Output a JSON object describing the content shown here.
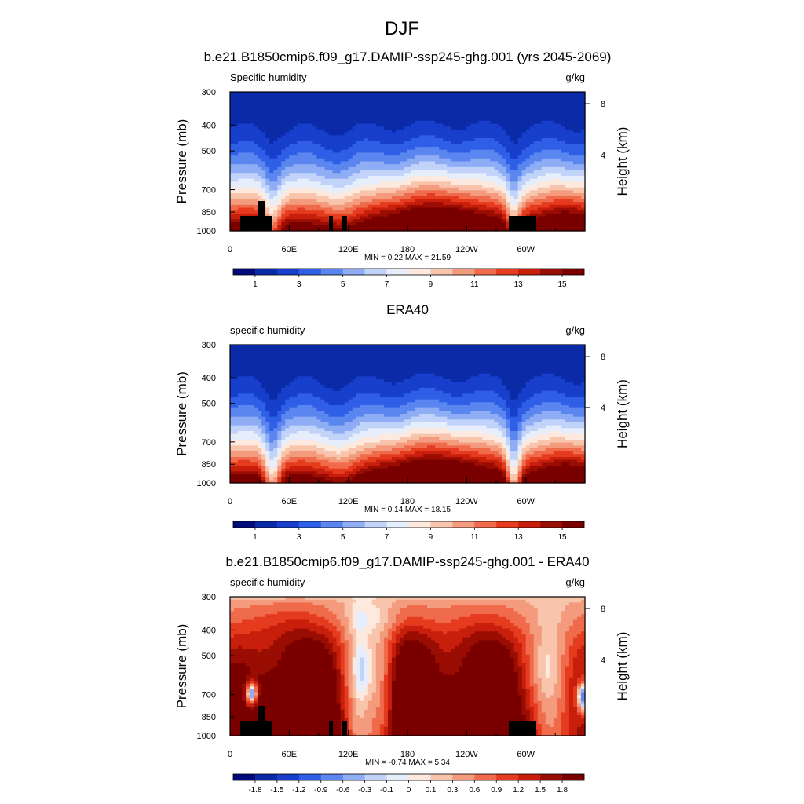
{
  "figure_title": "DJF",
  "chart_data": [
    {
      "type": "heatmap",
      "title": "b.e21.B1850cmip6.f09_g17.DAMIP-ssp245-ghg.001 (yrs 2045-2069)",
      "left_label": "Specific humidity",
      "right_label": "g/kg",
      "ylabel": "Pressure (mb)",
      "right_axis_label": "Height (km)",
      "yticks": [
        300,
        400,
        500,
        700,
        850,
        1000
      ],
      "right_ticks": [
        "8",
        "4"
      ],
      "xticks": [
        "0",
        "60E",
        "120E",
        "180",
        "120W",
        "60W"
      ],
      "stats": "MIN =   0.22  MAX =  21.59",
      "colorbar_labels": [
        "1",
        "3",
        "5",
        "7",
        "9",
        "11",
        "13",
        "15"
      ],
      "levels": [
        0,
        1,
        2,
        3,
        4,
        5,
        6,
        7,
        8,
        9,
        10,
        11,
        12,
        13,
        14,
        15
      ],
      "min": 0.22,
      "max": 21.59
    },
    {
      "type": "heatmap",
      "title": "ERA40",
      "left_label": "specific humidity",
      "right_label": "g/kg",
      "ylabel": "Pressure (mb)",
      "right_axis_label": "Height (km)",
      "yticks": [
        300,
        400,
        500,
        700,
        850,
        1000
      ],
      "right_ticks": [
        "8",
        "4"
      ],
      "xticks": [
        "0",
        "60E",
        "120E",
        "180",
        "120W",
        "60W"
      ],
      "stats": "MIN =   0.14  MAX =  18.15",
      "colorbar_labels": [
        "1",
        "3",
        "5",
        "7",
        "9",
        "11",
        "13",
        "15"
      ],
      "levels": [
        0,
        1,
        2,
        3,
        4,
        5,
        6,
        7,
        8,
        9,
        10,
        11,
        12,
        13,
        14,
        15
      ],
      "min": 0.14,
      "max": 18.15
    },
    {
      "type": "heatmap",
      "title": "b.e21.B1850cmip6.f09_g17.DAMIP-ssp245-ghg.001 - ERA40",
      "left_label": "specific humidity",
      "right_label": "g/kg",
      "ylabel": "Pressure (mb)",
      "right_axis_label": "Height (km)",
      "yticks": [
        300,
        400,
        500,
        700,
        850,
        1000
      ],
      "right_ticks": [
        "8",
        "4"
      ],
      "xticks": [
        "0",
        "60E",
        "120E",
        "180",
        "120W",
        "60W"
      ],
      "stats": "MIN =  -0.74  MAX =   5.34",
      "colorbar_labels": [
        "-1.8",
        "-1.5",
        "-1.2",
        "-0.9",
        "-0.6",
        "-0.3",
        "-0.1",
        "0",
        "0.1",
        "0.3",
        "0.6",
        "0.9",
        "1.2",
        "1.5",
        "1.8"
      ],
      "levels": [
        -1.8,
        -1.5,
        -1.2,
        -0.9,
        -0.6,
        -0.3,
        -0.1,
        0,
        0.1,
        0.3,
        0.6,
        0.9,
        1.2,
        1.5,
        1.8
      ],
      "min": -0.74,
      "max": 5.34
    }
  ],
  "palette": [
    "#000b7a",
    "#0a2aa8",
    "#173fcc",
    "#2f5fe6",
    "#5b86ef",
    "#8fadf5",
    "#c2d3fa",
    "#e6eefc",
    "#fde9dd",
    "#f8c5ac",
    "#f49b7e",
    "#ef6b4b",
    "#e53b1f",
    "#c81e0c",
    "#9a0d03",
    "#7a0000"
  ]
}
